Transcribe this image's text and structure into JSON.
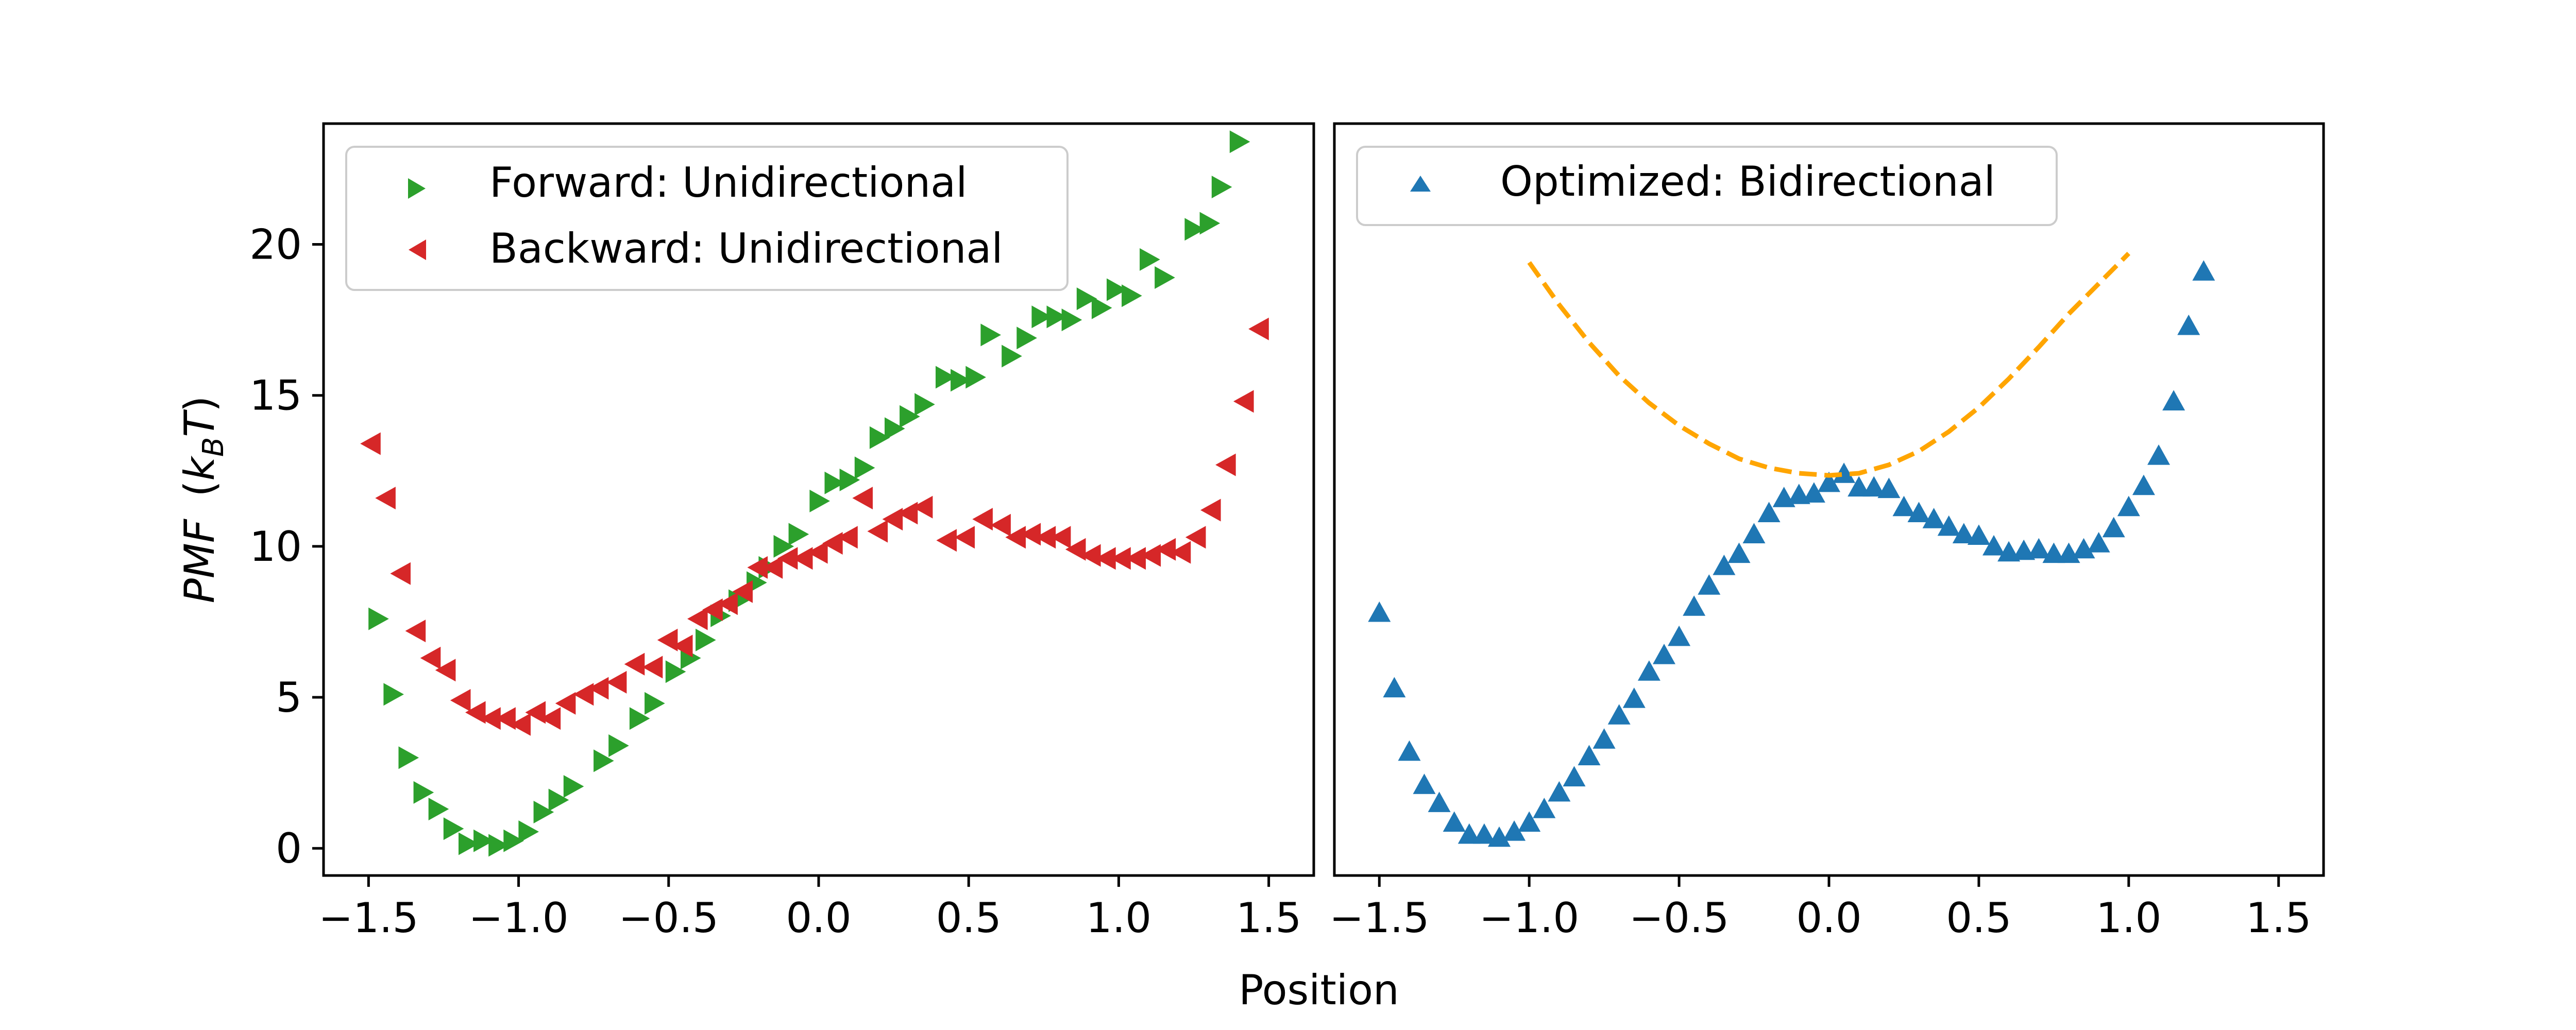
{
  "chart_data": [
    {
      "type": "scatter",
      "xlabel": "",
      "ylabel_main": "PMF",
      "ylabel_units_prefix": "(",
      "ylabel_units_sym": "k",
      "ylabel_units_sub": "B",
      "ylabel_units_var": "T",
      "ylabel_units_suffix": ")",
      "xlim": [
        -1.65,
        1.65
      ],
      "ylim": [
        -0.9,
        24.0
      ],
      "xticks": [
        -1.5,
        -1.0,
        -0.5,
        0.0,
        0.5,
        1.0,
        1.5
      ],
      "xtick_labels": [
        "−1.5",
        "−1.0",
        "−0.5",
        "0.0",
        "0.5",
        "1.0",
        "1.5"
      ],
      "yticks": [
        0,
        5,
        10,
        15,
        20
      ],
      "ytick_labels": [
        "0",
        "5",
        "10",
        "15",
        "20"
      ],
      "legend_position": "upper-left",
      "series": [
        {
          "name": "Forward: Unidirectional",
          "color": "#2ca02c",
          "marker": "triangle-right",
          "points": [
            [
              -1.47,
              7.6
            ],
            [
              -1.42,
              5.1
            ],
            [
              -1.37,
              3.0
            ],
            [
              -1.32,
              1.85
            ],
            [
              -1.27,
              1.3
            ],
            [
              -1.22,
              0.65
            ],
            [
              -1.17,
              0.15
            ],
            [
              -1.12,
              0.25
            ],
            [
              -1.07,
              0.1
            ],
            [
              -1.02,
              0.25
            ],
            [
              -0.97,
              0.55
            ],
            [
              -0.92,
              1.2
            ],
            [
              -0.87,
              1.6
            ],
            [
              -0.82,
              2.05
            ],
            [
              -0.72,
              2.9
            ],
            [
              -0.67,
              3.4
            ],
            [
              -0.6,
              4.3
            ],
            [
              -0.55,
              4.8
            ],
            [
              -0.48,
              5.85
            ],
            [
              -0.43,
              6.3
            ],
            [
              -0.38,
              6.9
            ],
            [
              -0.33,
              7.7
            ],
            [
              -0.27,
              8.2
            ],
            [
              -0.21,
              8.8
            ],
            [
              -0.17,
              9.3
            ],
            [
              -0.12,
              10.0
            ],
            [
              -0.07,
              10.4
            ],
            [
              0.0,
              11.5
            ],
            [
              0.05,
              12.1
            ],
            [
              0.1,
              12.2
            ],
            [
              0.15,
              12.6
            ],
            [
              0.2,
              13.6
            ],
            [
              0.25,
              13.9
            ],
            [
              0.3,
              14.3
            ],
            [
              0.35,
              14.7
            ],
            [
              0.42,
              15.6
            ],
            [
              0.47,
              15.5
            ],
            [
              0.52,
              15.6
            ],
            [
              0.57,
              17.0
            ],
            [
              0.64,
              16.3
            ],
            [
              0.69,
              16.9
            ],
            [
              0.74,
              17.6
            ],
            [
              0.79,
              17.6
            ],
            [
              0.84,
              17.5
            ],
            [
              0.89,
              18.2
            ],
            [
              0.94,
              17.9
            ],
            [
              0.99,
              18.5
            ],
            [
              1.04,
              18.3
            ],
            [
              1.1,
              19.5
            ],
            [
              1.15,
              18.9
            ],
            [
              1.25,
              20.5
            ],
            [
              1.3,
              20.7
            ],
            [
              1.34,
              21.9
            ],
            [
              1.4,
              23.4
            ]
          ]
        },
        {
          "name": "Backward: Unidirectional",
          "color": "#d62728",
          "marker": "triangle-left",
          "points": [
            [
              -1.49,
              13.4
            ],
            [
              -1.44,
              11.6
            ],
            [
              -1.39,
              9.1
            ],
            [
              -1.34,
              7.2
            ],
            [
              -1.29,
              6.3
            ],
            [
              -1.24,
              5.9
            ],
            [
              -1.19,
              4.9
            ],
            [
              -1.14,
              4.5
            ],
            [
              -1.09,
              4.3
            ],
            [
              -1.04,
              4.3
            ],
            [
              -0.99,
              4.1
            ],
            [
              -0.94,
              4.5
            ],
            [
              -0.89,
              4.3
            ],
            [
              -0.84,
              4.8
            ],
            [
              -0.78,
              5.1
            ],
            [
              -0.73,
              5.3
            ],
            [
              -0.67,
              5.5
            ],
            [
              -0.61,
              6.1
            ],
            [
              -0.55,
              6.0
            ],
            [
              -0.5,
              6.9
            ],
            [
              -0.45,
              6.7
            ],
            [
              -0.4,
              7.6
            ],
            [
              -0.35,
              7.9
            ],
            [
              -0.3,
              8.1
            ],
            [
              -0.25,
              8.5
            ],
            [
              -0.2,
              9.3
            ],
            [
              -0.15,
              9.3
            ],
            [
              -0.1,
              9.6
            ],
            [
              -0.05,
              9.6
            ],
            [
              0.0,
              9.8
            ],
            [
              0.05,
              10.1
            ],
            [
              0.1,
              10.3
            ],
            [
              0.15,
              11.6
            ],
            [
              0.2,
              10.5
            ],
            [
              0.25,
              10.9
            ],
            [
              0.3,
              11.1
            ],
            [
              0.35,
              11.3
            ],
            [
              0.43,
              10.2
            ],
            [
              0.49,
              10.3
            ],
            [
              0.55,
              10.9
            ],
            [
              0.61,
              10.7
            ],
            [
              0.66,
              10.3
            ],
            [
              0.71,
              10.4
            ],
            [
              0.76,
              10.3
            ],
            [
              0.81,
              10.3
            ],
            [
              0.86,
              9.9
            ],
            [
              0.91,
              9.7
            ],
            [
              0.96,
              9.6
            ],
            [
              1.01,
              9.6
            ],
            [
              1.06,
              9.6
            ],
            [
              1.11,
              9.7
            ],
            [
              1.16,
              9.9
            ],
            [
              1.21,
              9.8
            ],
            [
              1.26,
              10.3
            ],
            [
              1.31,
              11.2
            ],
            [
              1.36,
              12.7
            ],
            [
              1.42,
              14.8
            ],
            [
              1.47,
              17.2
            ]
          ]
        }
      ]
    },
    {
      "type": "scatter",
      "xlabel": "Position",
      "xlim": [
        -1.65,
        1.65
      ],
      "ylim": [
        -0.9,
        24.0
      ],
      "xticks": [
        -1.5,
        -1.0,
        -0.5,
        0.0,
        0.5,
        1.0,
        1.5
      ],
      "xtick_labels": [
        "−1.5",
        "−1.0",
        "−0.5",
        "0.0",
        "0.5",
        "1.0",
        "1.5"
      ],
      "legend_position": "upper-left",
      "series": [
        {
          "name": "Optimized: Bidirectional",
          "color": "#1f77b4",
          "marker": "triangle-up",
          "points": [
            [
              -1.5,
              7.8
            ],
            [
              -1.45,
              5.3
            ],
            [
              -1.4,
              3.2
            ],
            [
              -1.35,
              2.1
            ],
            [
              -1.3,
              1.5
            ],
            [
              -1.25,
              0.85
            ],
            [
              -1.2,
              0.45
            ],
            [
              -1.15,
              0.45
            ],
            [
              -1.1,
              0.35
            ],
            [
              -1.05,
              0.55
            ],
            [
              -1.0,
              0.85
            ],
            [
              -0.95,
              1.3
            ],
            [
              -0.9,
              1.85
            ],
            [
              -0.85,
              2.35
            ],
            [
              -0.8,
              3.05
            ],
            [
              -0.75,
              3.6
            ],
            [
              -0.7,
              4.4
            ],
            [
              -0.65,
              4.95
            ],
            [
              -0.6,
              5.85
            ],
            [
              -0.55,
              6.4
            ],
            [
              -0.5,
              7.0
            ],
            [
              -0.45,
              8.0
            ],
            [
              -0.4,
              8.7
            ],
            [
              -0.35,
              9.35
            ],
            [
              -0.3,
              9.75
            ],
            [
              -0.25,
              10.4
            ],
            [
              -0.2,
              11.1
            ],
            [
              -0.15,
              11.6
            ],
            [
              -0.1,
              11.7
            ],
            [
              -0.05,
              11.75
            ],
            [
              0.0,
              12.1
            ],
            [
              0.05,
              12.4
            ],
            [
              0.1,
              11.95
            ],
            [
              0.15,
              11.95
            ],
            [
              0.2,
              11.9
            ],
            [
              0.25,
              11.3
            ],
            [
              0.3,
              11.1
            ],
            [
              0.35,
              10.9
            ],
            [
              0.4,
              10.65
            ],
            [
              0.45,
              10.4
            ],
            [
              0.5,
              10.35
            ],
            [
              0.55,
              10.0
            ],
            [
              0.6,
              9.8
            ],
            [
              0.65,
              9.85
            ],
            [
              0.7,
              9.9
            ],
            [
              0.75,
              9.75
            ],
            [
              0.8,
              9.75
            ],
            [
              0.85,
              9.9
            ],
            [
              0.9,
              10.1
            ],
            [
              0.95,
              10.6
            ],
            [
              1.0,
              11.3
            ],
            [
              1.05,
              12.0
            ],
            [
              1.1,
              13.0
            ],
            [
              1.15,
              14.8
            ],
            [
              1.2,
              17.3
            ],
            [
              1.25,
              19.1
            ]
          ]
        },
        {
          "name": "",
          "color": "#ffa500",
          "marker": "dashed-line",
          "points": [
            [
              -1.0,
              19.4
            ],
            [
              -0.9,
              18.0
            ],
            [
              -0.8,
              16.75
            ],
            [
              -0.7,
              15.65
            ],
            [
              -0.6,
              14.75
            ],
            [
              -0.5,
              14.0
            ],
            [
              -0.4,
              13.4
            ],
            [
              -0.3,
              12.9
            ],
            [
              -0.2,
              12.6
            ],
            [
              -0.1,
              12.42
            ],
            [
              0.0,
              12.35
            ],
            [
              0.1,
              12.42
            ],
            [
              0.2,
              12.7
            ],
            [
              0.3,
              13.15
            ],
            [
              0.4,
              13.8
            ],
            [
              0.5,
              14.6
            ],
            [
              0.6,
              15.55
            ],
            [
              0.7,
              16.6
            ],
            [
              0.8,
              17.7
            ],
            [
              0.9,
              18.7
            ],
            [
              1.0,
              19.7
            ]
          ]
        }
      ]
    }
  ]
}
